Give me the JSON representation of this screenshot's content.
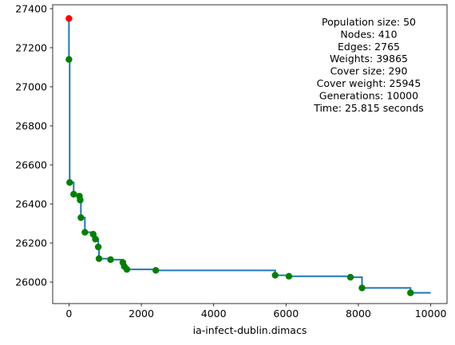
{
  "chart_data": {
    "type": "line",
    "title": "",
    "xlabel": "ia-infect-dublin.dimacs",
    "ylabel": "",
    "xlim": [
      -450,
      10450
    ],
    "ylim": [
      25890,
      27420
    ],
    "xticks": [
      0,
      2000,
      4000,
      6000,
      8000,
      10000
    ],
    "yticks": [
      26000,
      26200,
      26400,
      26600,
      26800,
      27000,
      27200,
      27400
    ],
    "grid": false,
    "line_color": "#1f77b4",
    "improvement_marker_color": "#008000",
    "initial_marker_color": "#ff0000",
    "step_curve": {
      "x": [
        0,
        0,
        20,
        20,
        130,
        130,
        290,
        290,
        310,
        310,
        330,
        330,
        440,
        440,
        670,
        670,
        730,
        730,
        810,
        810,
        830,
        830,
        1150,
        1150,
        1490,
        1490,
        1530,
        1530,
        1600,
        1600,
        2400,
        2400,
        5700,
        5700,
        6080,
        6080,
        7780,
        7780,
        8100,
        8100,
        9440,
        9440,
        10000
      ],
      "y": [
        27350,
        27140,
        27140,
        26510,
        26510,
        26450,
        26450,
        26440,
        26440,
        26420,
        26420,
        26330,
        26330,
        26255,
        26255,
        26245,
        26245,
        26220,
        26220,
        26180,
        26180,
        26120,
        26120,
        26115,
        26115,
        26100,
        26100,
        26080,
        26080,
        26065,
        26065,
        26060,
        26060,
        26035,
        26035,
        26030,
        26030,
        26025,
        26025,
        25970,
        25970,
        25945,
        25945
      ]
    },
    "initial_point": {
      "x": 0,
      "y": 27350
    },
    "improvements": {
      "x": [
        0,
        20,
        130,
        290,
        310,
        330,
        440,
        670,
        730,
        810,
        830,
        1150,
        1490,
        1530,
        1600,
        2400,
        5700,
        6080,
        7780,
        8100,
        9440
      ],
      "y": [
        27140,
        26510,
        26450,
        26440,
        26420,
        26330,
        26255,
        26245,
        26220,
        26180,
        26120,
        26115,
        26100,
        26080,
        26065,
        26060,
        26035,
        26030,
        26025,
        25970,
        25945
      ]
    },
    "annotations": [
      "Population size: 50",
      "Nodes: 410",
      "Edges: 2765",
      "Weights: 39865",
      "Cover size: 290",
      "Cover weight: 25945",
      "Generations: 10000",
      "Time: 25.815 seconds"
    ]
  }
}
